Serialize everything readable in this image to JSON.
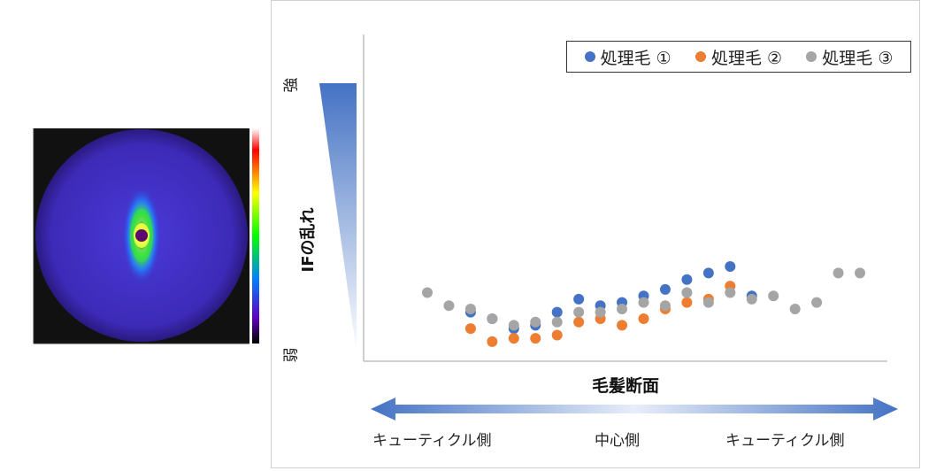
{
  "chart_data": {
    "type": "scatter",
    "xlabel": "毛髪断面",
    "ylabel": "IFの乱れ",
    "y_high_label": "強",
    "y_low_label": "弱",
    "x_direction_labels": [
      "キューティクル側",
      "中心側",
      "キューティクル側"
    ],
    "ylim": [
      0,
      100
    ],
    "legend_position": "top-right",
    "grid": false,
    "series": [
      {
        "name": "処理毛 ①",
        "color": "#4472C4",
        "points": [
          [
            3,
            15
          ],
          [
            4,
            13
          ],
          [
            5,
            10
          ],
          [
            6,
            11
          ],
          [
            7,
            15
          ],
          [
            8,
            19
          ],
          [
            9,
            17
          ],
          [
            10,
            18
          ],
          [
            11,
            20
          ],
          [
            12,
            22
          ],
          [
            13,
            25
          ],
          [
            14,
            27
          ],
          [
            15,
            29
          ],
          [
            16,
            20
          ]
        ]
      },
      {
        "name": "処理毛 ②",
        "color": "#ED7D31",
        "points": [
          [
            3,
            10
          ],
          [
            4,
            6
          ],
          [
            5,
            7
          ],
          [
            6,
            7
          ],
          [
            7,
            8
          ],
          [
            8,
            12
          ],
          [
            9,
            13
          ],
          [
            10,
            11
          ],
          [
            11,
            13
          ],
          [
            12,
            16
          ],
          [
            13,
            18
          ],
          [
            14,
            19
          ],
          [
            15,
            23
          ]
        ]
      },
      {
        "name": "処理毛 ③",
        "color": "#A5A5A5",
        "points": [
          [
            1,
            21
          ],
          [
            2,
            17
          ],
          [
            3,
            16
          ],
          [
            4,
            13
          ],
          [
            5,
            11
          ],
          [
            6,
            12
          ],
          [
            7,
            12
          ],
          [
            8,
            15
          ],
          [
            9,
            15
          ],
          [
            10,
            16
          ],
          [
            11,
            18
          ],
          [
            12,
            17
          ],
          [
            13,
            21
          ],
          [
            14,
            18
          ],
          [
            15,
            21
          ],
          [
            16,
            19
          ],
          [
            17,
            20
          ],
          [
            18,
            16
          ],
          [
            19,
            18
          ],
          [
            20,
            27
          ],
          [
            21,
            27
          ]
        ]
      }
    ]
  },
  "colors": {
    "gradient_dark": "#4472C4",
    "gradient_light": "#ffffff"
  }
}
